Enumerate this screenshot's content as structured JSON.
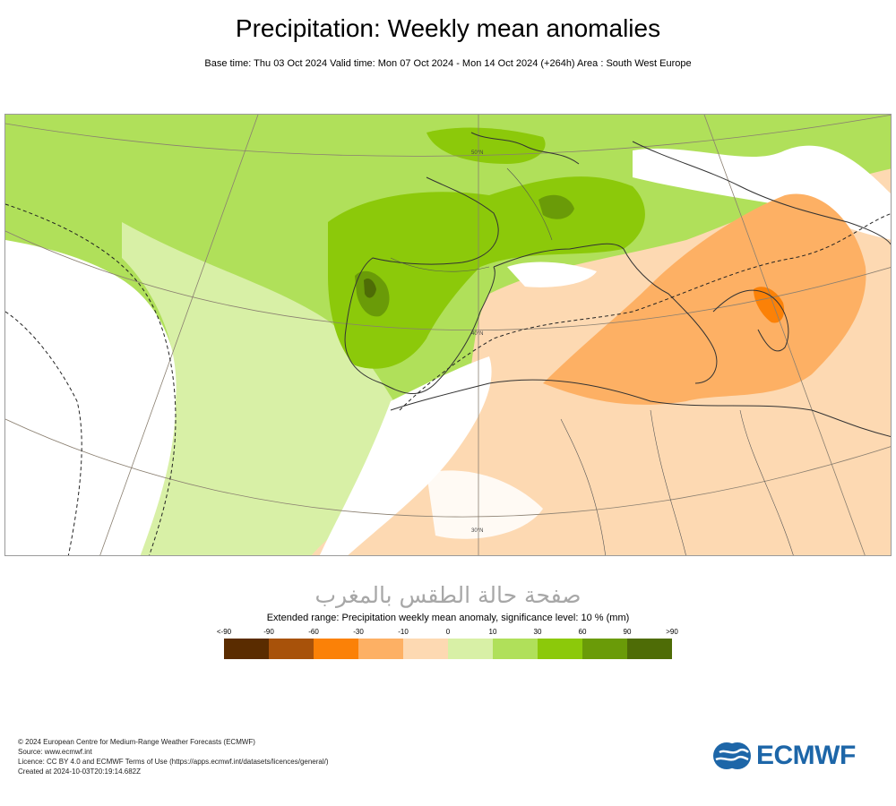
{
  "header": {
    "title": "Precipitation: Weekly mean anomalies",
    "subtitle": "Base time: Thu 03 Oct 2024 Valid time: Mon 07 Oct 2024 - Mon 14 Oct 2024 (+264h) Area : South West Europe"
  },
  "map": {
    "region": "South West Europe",
    "lat_labels": [
      "50°N",
      "40°N",
      "30°N"
    ]
  },
  "watermark": "صفحة حالة الطقس بالمغرب",
  "legend": {
    "title": "Extended range: Precipitation weekly mean anomaly, significance level: 10 % (mm)",
    "ticks": [
      "<-90",
      "-90",
      "-60",
      "-30",
      "-10",
      "0",
      "10",
      "30",
      "60",
      "90",
      ">90"
    ],
    "colors": [
      "#5a2c00",
      "#a8520a",
      "#fb8107",
      "#fdb064",
      "#fdd9b2",
      "#d8f0a6",
      "#b0e05a",
      "#8cc90a",
      "#6a9b08",
      "#4e6c06"
    ]
  },
  "footer": {
    "credits": [
      "© 2024 European Centre for Medium-Range Weather Forecasts (ECMWF)",
      "Source: www.ecmwf.int",
      "Licence: CC BY 4.0 and ECMWF Terms of Use (https://apps.ecmwf.int/datasets/licences/general/)",
      "Created at 2024-10-03T20:19:14.682Z"
    ],
    "logo_text": "ECMWF"
  }
}
